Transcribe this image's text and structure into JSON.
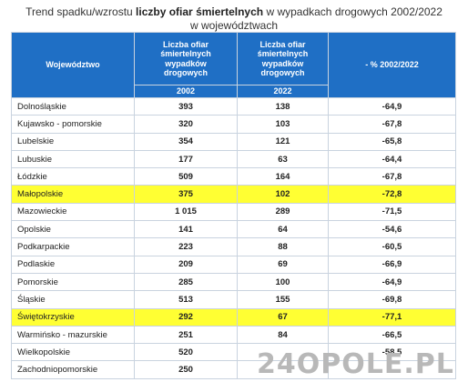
{
  "title": {
    "part1": "Trend spadku/wzrostu ",
    "bold": "liczby ofiar śmiertelnych",
    "part2": " w wypadkach drogowych 2002/2022",
    "line2": "w województwach"
  },
  "table": {
    "headers": {
      "region": "Województwo",
      "col2002_label": "Liczba ofiar śmiertelnych wypadków drogowych",
      "col2002_year": "2002",
      "col2022_label": "Liczba ofiar śmiertelnych wypadków drogowych",
      "col2022_year": "2022",
      "pct": "- % 2002/2022"
    },
    "rows": [
      {
        "name": "Dolnośląskie",
        "v2002": "393",
        "v2022": "138",
        "pct": "-64,9"
      },
      {
        "name": "Kujawsko - pomorskie",
        "v2002": "320",
        "v2022": "103",
        "pct": "-67,8"
      },
      {
        "name": "Lubelskie",
        "v2002": "354",
        "v2022": "121",
        "pct": "-65,8"
      },
      {
        "name": "Lubuskie",
        "v2002": "177",
        "v2022": "63",
        "pct": "-64,4"
      },
      {
        "name": "Łódzkie",
        "v2002": "509",
        "v2022": "164",
        "pct": "-67,8"
      },
      {
        "name": "Małopolskie",
        "v2002": "375",
        "v2022": "102",
        "pct": "-72,8"
      },
      {
        "name": "Mazowieckie",
        "v2002": "1 015",
        "v2022": "289",
        "pct": "-71,5"
      },
      {
        "name": "Opolskie",
        "v2002": "141",
        "v2022": "64",
        "pct": "-54,6"
      },
      {
        "name": "Podkarpackie",
        "v2002": "223",
        "v2022": "88",
        "pct": "-60,5"
      },
      {
        "name": "Podlaskie",
        "v2002": "209",
        "v2022": "69",
        "pct": "-66,9"
      },
      {
        "name": "Pomorskie",
        "v2002": "285",
        "v2022": "100",
        "pct": "-64,9"
      },
      {
        "name": "Śląskie",
        "v2002": "513",
        "v2022": "155",
        "pct": "-69,8"
      },
      {
        "name": "Świętokrzyskie",
        "v2002": "292",
        "v2022": "67",
        "pct": "-77,1"
      },
      {
        "name": "Warmińsko - mazurskie",
        "v2002": "251",
        "v2022": "84",
        "pct": "-66,5"
      },
      {
        "name": "Wielkopolskie",
        "v2002": "520",
        "v2022": "",
        "pct": "-58,5"
      },
      {
        "name": "Zachodniopomorskie",
        "v2002": "250",
        "v2022": "",
        "pct": ""
      }
    ],
    "highlighted_rows": [
      "Małopolskie",
      "Świętokrzyskie"
    ]
  },
  "colors": {
    "header_bg": "#1f6fc5",
    "highlight": "#ffff33"
  },
  "watermark": {
    "text": "24OPOLE.PL"
  }
}
